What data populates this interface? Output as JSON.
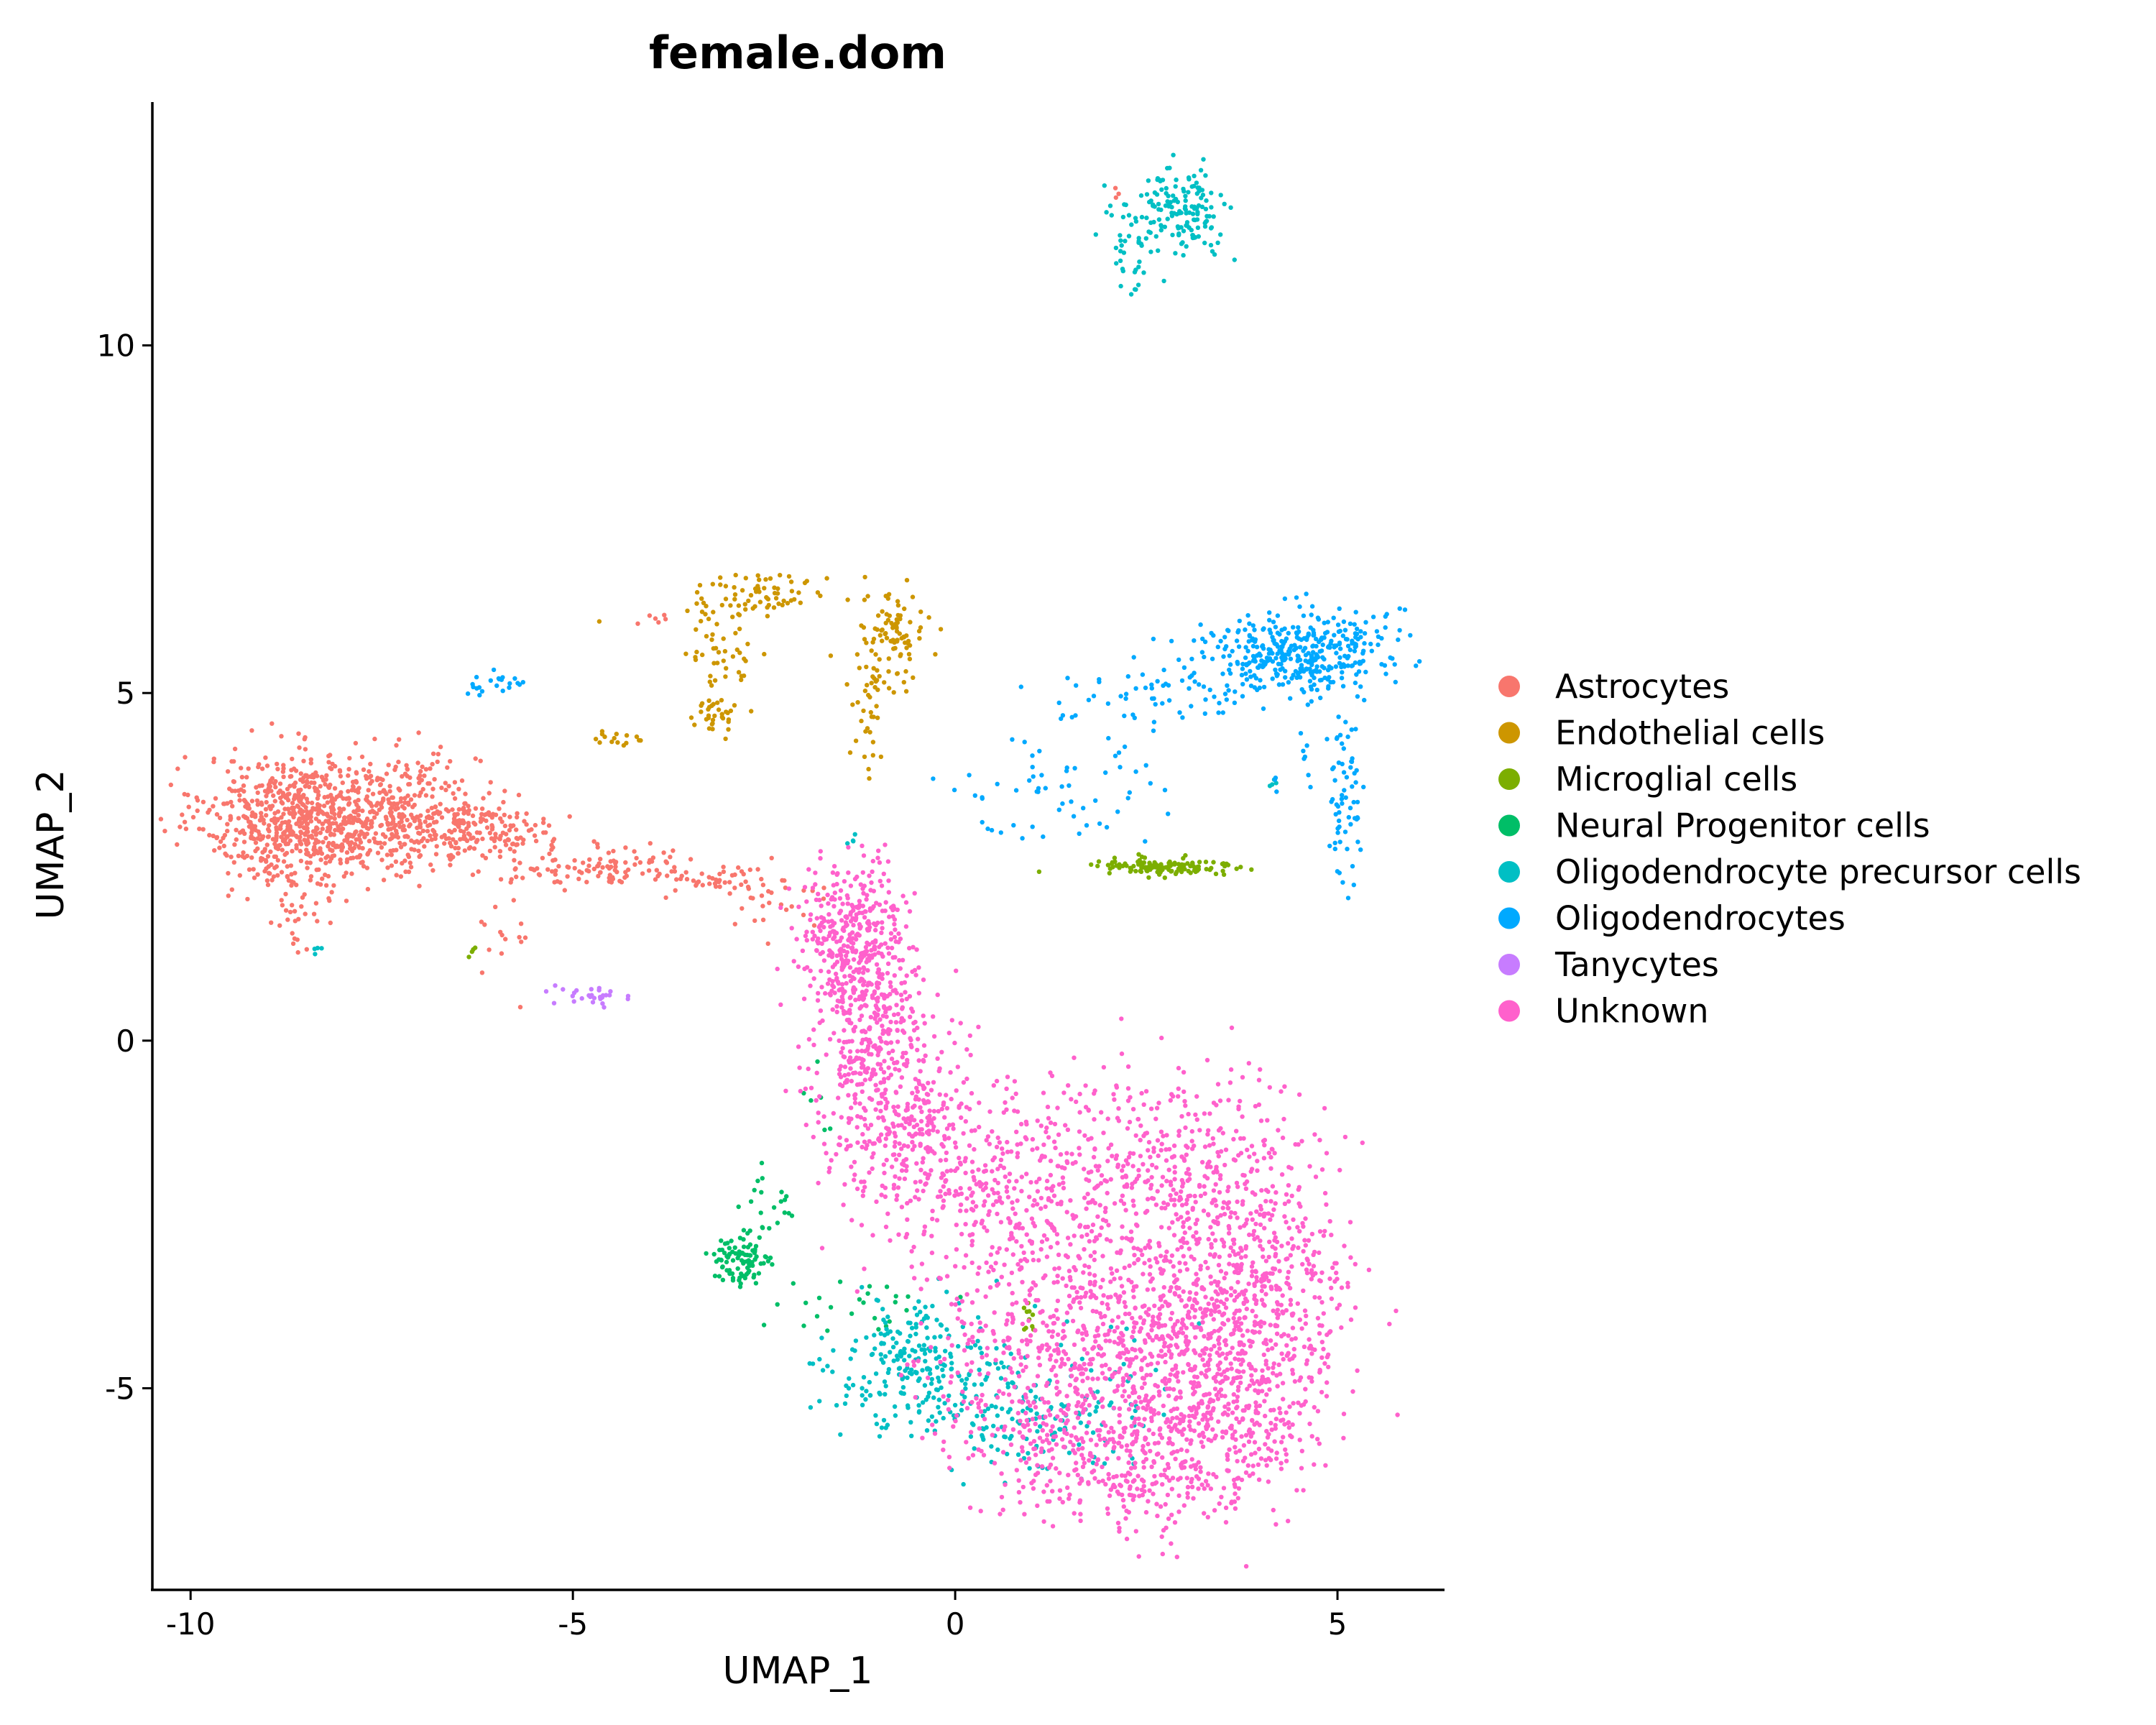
{
  "chart_data": {
    "type": "scatter",
    "title": "female.dom",
    "xlabel": "UMAP_1",
    "ylabel": "UMAP_2",
    "xlim": [
      -10.5,
      6.4
    ],
    "ylim": [
      -7.9,
      13.5
    ],
    "x_ticks": [
      -10,
      -5,
      0,
      5
    ],
    "x_tick_labels": [
      "-10",
      "-5",
      "0",
      "5"
    ],
    "y_ticks": [
      -5,
      0,
      5,
      10
    ],
    "y_tick_labels": [
      "-5",
      "0",
      "5",
      "10"
    ],
    "grid": false,
    "legend_position": "right",
    "series": [
      {
        "name": "Astrocytes",
        "color": "#F8766D",
        "clusters": [
          {
            "x": -8.5,
            "y": 3.2,
            "sx": 0.65,
            "sy": 0.45,
            "n": 750
          },
          {
            "x": -7.2,
            "y": 3.3,
            "sx": 0.5,
            "sy": 0.4,
            "n": 250
          },
          {
            "x": -6.2,
            "y": 3.0,
            "sx": 0.45,
            "sy": 0.25,
            "n": 170
          },
          {
            "x": -4.6,
            "y": 2.5,
            "sx": 0.6,
            "sy": 0.14,
            "n": 100
          },
          {
            "x": -3.1,
            "y": 2.3,
            "sx": 0.4,
            "sy": 0.12,
            "n": 45
          },
          {
            "x": -2.3,
            "y": 2.0,
            "sx": 0.3,
            "sy": 0.2,
            "n": 25
          },
          {
            "x": -8.6,
            "y": 1.9,
            "sx": 0.25,
            "sy": 0.4,
            "n": 40
          },
          {
            "x": -5.8,
            "y": 1.4,
            "sx": 0.2,
            "sy": 0.3,
            "n": 15
          },
          {
            "x": -4.0,
            "y": 6.05,
            "sx": 0.12,
            "sy": 0.05,
            "n": 6
          },
          {
            "x": 2.1,
            "y": 12.2,
            "sx": 0.05,
            "sy": 0.05,
            "n": 3
          }
        ]
      },
      {
        "name": "Endothelial cells",
        "color": "#CD9600",
        "clusters": [
          {
            "x": -2.5,
            "y": 6.45,
            "sx": 0.55,
            "sy": 0.15,
            "n": 70
          },
          {
            "x": -0.8,
            "y": 5.8,
            "sx": 0.2,
            "sy": 0.3,
            "n": 85
          },
          {
            "x": -1.1,
            "y": 4.8,
            "sx": 0.12,
            "sy": 0.5,
            "n": 40
          },
          {
            "x": -3.2,
            "y": 5.7,
            "sx": 0.12,
            "sy": 0.3,
            "n": 25
          },
          {
            "x": -3.2,
            "y": 4.7,
            "sx": 0.2,
            "sy": 0.12,
            "n": 30
          },
          {
            "x": -2.85,
            "y": 5.3,
            "sx": 0.15,
            "sy": 0.6,
            "n": 25
          },
          {
            "x": -4.5,
            "y": 4.35,
            "sx": 0.25,
            "sy": 0.08,
            "n": 15
          }
        ]
      },
      {
        "name": "Microglial cells",
        "color": "#7CAE00",
        "clusters": [
          {
            "x": 2.7,
            "y": 2.5,
            "sx": 0.5,
            "sy": 0.07,
            "n": 120
          },
          {
            "x": 0.95,
            "y": -4.0,
            "sx": 0.06,
            "sy": 0.15,
            "n": 10
          },
          {
            "x": -6.3,
            "y": 1.3,
            "sx": 0.03,
            "sy": 0.06,
            "n": 4
          }
        ]
      },
      {
        "name": "Neural Progenitor cells",
        "color": "#00BE67",
        "clusters": [
          {
            "x": -2.8,
            "y": -3.2,
            "sx": 0.2,
            "sy": 0.2,
            "n": 90
          },
          {
            "x": -2.5,
            "y": -2.5,
            "sx": 0.25,
            "sy": 0.35,
            "n": 25
          },
          {
            "x": -1.5,
            "y": -3.8,
            "sx": 0.6,
            "sy": 0.25,
            "n": 25
          },
          {
            "x": -1.9,
            "y": -0.8,
            "sx": 0.1,
            "sy": 0.4,
            "n": 6
          }
        ]
      },
      {
        "name": "Oligodendrocyte precursor cells",
        "color": "#00BFC4",
        "clusters": [
          {
            "x": 2.9,
            "y": 11.9,
            "sx": 0.35,
            "sy": 0.3,
            "n": 160
          },
          {
            "x": 2.3,
            "y": 11.3,
            "sx": 0.15,
            "sy": 0.3,
            "n": 25
          },
          {
            "x": -0.5,
            "y": -4.7,
            "sx": 0.55,
            "sy": 0.45,
            "n": 240
          },
          {
            "x": 0.9,
            "y": -5.4,
            "sx": 0.6,
            "sy": 0.4,
            "n": 120
          },
          {
            "x": 2.0,
            "y": -5.0,
            "sx": 0.5,
            "sy": 0.6,
            "n": 40
          },
          {
            "x": -8.4,
            "y": 1.3,
            "sx": 0.05,
            "sy": 0.03,
            "n": 4
          },
          {
            "x": 4.2,
            "y": 3.7,
            "sx": 0.04,
            "sy": 0.04,
            "n": 4
          },
          {
            "x": -1.35,
            "y": 2.9,
            "sx": 0.03,
            "sy": 0.08,
            "n": 4
          }
        ]
      },
      {
        "name": "Oligodendrocytes",
        "color": "#00A9FF",
        "clusters": [
          {
            "x": 4.5,
            "y": 5.6,
            "sx": 0.6,
            "sy": 0.3,
            "n": 380
          },
          {
            "x": 2.8,
            "y": 5.0,
            "sx": 0.7,
            "sy": 0.25,
            "n": 70
          },
          {
            "x": 1.2,
            "y": 3.6,
            "sx": 0.7,
            "sy": 0.45,
            "n": 60
          },
          {
            "x": 5.1,
            "y": 3.5,
            "sx": 0.12,
            "sy": 0.6,
            "n": 65
          },
          {
            "x": 4.4,
            "y": 4.3,
            "sx": 0.2,
            "sy": 0.5,
            "n": 12
          },
          {
            "x": -6.0,
            "y": 5.15,
            "sx": 0.2,
            "sy": 0.08,
            "n": 22
          }
        ]
      },
      {
        "name": "Tanycytes",
        "color": "#C77CFF",
        "clusters": [
          {
            "x": -4.8,
            "y": 0.65,
            "sx": 0.22,
            "sy": 0.07,
            "n": 28
          }
        ]
      },
      {
        "name": "Unknown",
        "color": "#FF61CC",
        "clusters": [
          {
            "x": -1.3,
            "y": 1.5,
            "sx": 0.35,
            "sy": 0.5,
            "n": 380
          },
          {
            "x": -1.0,
            "y": 0.0,
            "sx": 0.45,
            "sy": 0.6,
            "n": 340
          },
          {
            "x": -0.6,
            "y": -1.4,
            "sx": 0.6,
            "sy": 0.6,
            "n": 260
          },
          {
            "x": 0.8,
            "y": -2.4,
            "sx": 0.9,
            "sy": 0.7,
            "n": 340
          },
          {
            "x": 2.3,
            "y": -1.7,
            "sx": 0.9,
            "sy": 0.7,
            "n": 240
          },
          {
            "x": 3.5,
            "y": -2.2,
            "sx": 0.7,
            "sy": 0.8,
            "n": 260
          },
          {
            "x": 4.0,
            "y": -3.6,
            "sx": 0.6,
            "sy": 0.7,
            "n": 340
          },
          {
            "x": 2.6,
            "y": -4.2,
            "sx": 0.9,
            "sy": 0.7,
            "n": 480
          },
          {
            "x": 2.2,
            "y": -5.9,
            "sx": 0.9,
            "sy": 0.6,
            "n": 440
          },
          {
            "x": 3.6,
            "y": -5.4,
            "sx": 0.6,
            "sy": 0.6,
            "n": 320
          },
          {
            "x": 0.9,
            "y": -4.6,
            "sx": 0.7,
            "sy": 0.7,
            "n": 240
          }
        ]
      }
    ]
  }
}
